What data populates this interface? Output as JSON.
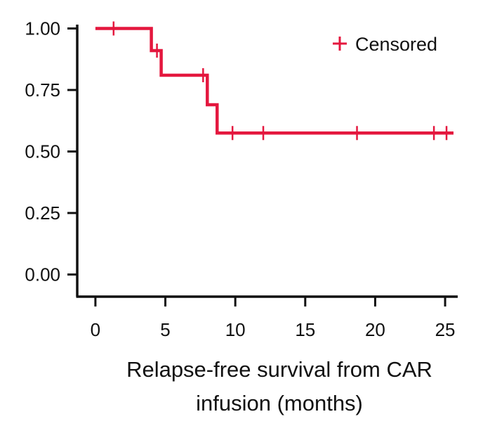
{
  "chart_data": {
    "type": "line",
    "xlabel": [
      "Relapse-free survival from CAR",
      "infusion (months)"
    ],
    "ylabel": "",
    "xlim": [
      -1.3,
      25.9
    ],
    "ylim": [
      -0.09,
      1.03
    ],
    "x_ticks": [
      0,
      5,
      10,
      15,
      20,
      25
    ],
    "x_tick_labels": [
      "0",
      "5",
      "10",
      "15",
      "20",
      "25"
    ],
    "y_ticks": [
      0.0,
      0.25,
      0.5,
      0.75,
      1.0
    ],
    "y_tick_labels": [
      "0.00",
      "0.25",
      "0.50",
      "0.75",
      "1.00"
    ],
    "grid": false,
    "legend": {
      "position": "top-right",
      "entries": [
        {
          "label": "Censored",
          "marker": "+"
        }
      ]
    },
    "colors": {
      "curve": "#e4173e",
      "axis": "#111111"
    },
    "series": [
      {
        "step": true,
        "x": [
          0,
          4.0,
          4.7,
          8.0,
          8.7,
          25.6
        ],
        "y": [
          1.0,
          0.91,
          0.81,
          0.69,
          0.575,
          0.575
        ]
      }
    ],
    "censored": [
      {
        "x": 1.3,
        "y": 1.0
      },
      {
        "x": 4.4,
        "y": 0.91
      },
      {
        "x": 7.7,
        "y": 0.81
      },
      {
        "x": 9.8,
        "y": 0.575
      },
      {
        "x": 12.0,
        "y": 0.575
      },
      {
        "x": 18.7,
        "y": 0.575
      },
      {
        "x": 24.2,
        "y": 0.575
      },
      {
        "x": 25.1,
        "y": 0.575
      }
    ]
  }
}
